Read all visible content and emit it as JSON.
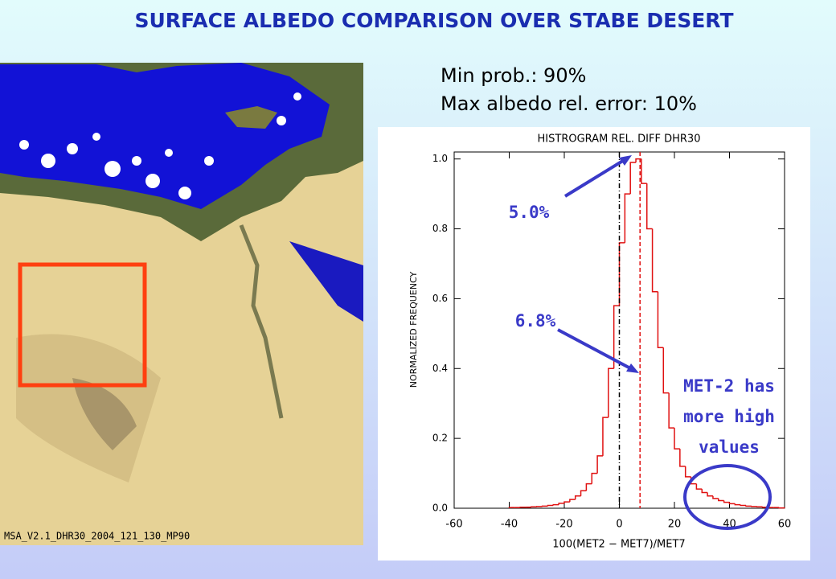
{
  "title": "SURFACE ALBEDO COMPARISON OVER STABE DESERT",
  "info": [
    "Min prob.: 90%",
    "Max albedo rel. error: 10%"
  ],
  "image_caption": "MSA_V2.1_DHR30_2004_121_130_MP90",
  "chart_data": {
    "type": "histogram",
    "title": "HISTROGRAM REL. DIFF DHR30",
    "x_label": "100(MET2 − MET7)/MET7",
    "y_label": "NORMALIZED FREQUENCY",
    "color": "#e01010",
    "bins": [
      -40,
      -38,
      -36,
      -34,
      -32,
      -30,
      -28,
      -26,
      -24,
      -22,
      -20,
      -18,
      -16,
      -14,
      -12,
      -10,
      -8,
      -6,
      -4,
      -2,
      0,
      2,
      4,
      6,
      8,
      10,
      12,
      14,
      16,
      18,
      20,
      22,
      24,
      26,
      28,
      30,
      32,
      34,
      36,
      38,
      40,
      42,
      44,
      46,
      48,
      50,
      52,
      54,
      56,
      58,
      60
    ],
    "values": [
      0.002,
      0.002,
      0.003,
      0.003,
      0.004,
      0.005,
      0.006,
      0.008,
      0.01,
      0.014,
      0.018,
      0.025,
      0.035,
      0.05,
      0.07,
      0.1,
      0.15,
      0.26,
      0.4,
      0.58,
      0.76,
      0.9,
      0.99,
      1.0,
      0.93,
      0.8,
      0.62,
      0.46,
      0.33,
      0.23,
      0.17,
      0.12,
      0.09,
      0.07,
      0.055,
      0.045,
      0.035,
      0.028,
      0.022,
      0.017,
      0.013,
      0.01,
      0.008,
      0.006,
      0.005,
      0.004,
      0.003,
      0.002,
      0.002,
      0.001
    ],
    "xlim": [
      -60,
      60
    ],
    "ylim": [
      0,
      1.02
    ],
    "xticks": [
      -60,
      -40,
      -20,
      0,
      20,
      40,
      60
    ],
    "yticks": [
      {
        "value": 0,
        "label": "0.0"
      },
      0.2,
      0.4,
      0.6,
      0.8,
      {
        "value": 1,
        "label": "1.0"
      }
    ],
    "vlines": [
      {
        "x": 0,
        "color": "#000000"
      },
      {
        "x": 7.5,
        "color": "#e01010"
      }
    ],
    "annotations": [
      {
        "text": "5.0%"
      },
      {
        "text": "6.8%"
      },
      {
        "lines": [
          "MET-2 has",
          "more high",
          "values"
        ]
      }
    ]
  }
}
